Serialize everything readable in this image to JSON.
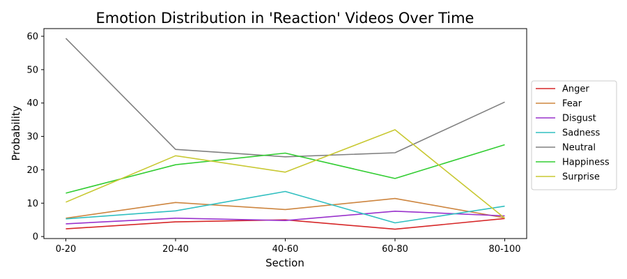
{
  "chart_data": {
    "type": "line",
    "title": "Emotion Distribution in 'Reaction' Videos Over Time",
    "xlabel": "Section",
    "ylabel": "Probability",
    "categories": [
      "0-20",
      "20-40",
      "40-60",
      "60-80",
      "80-100"
    ],
    "ylim": [
      -0.6,
      62.3
    ],
    "yticks": [
      0,
      10,
      20,
      30,
      40,
      50,
      60
    ],
    "grid": false,
    "legend_position": "right",
    "series": [
      {
        "name": "Anger",
        "color": "#d62728",
        "values": [
          2.3,
          4.4,
          5.0,
          2.2,
          5.4
        ]
      },
      {
        "name": "Fear",
        "color": "#cd853f",
        "values": [
          5.5,
          10.2,
          8.1,
          11.4,
          5.6
        ]
      },
      {
        "name": "Disgust",
        "color": "#9932cc",
        "values": [
          3.8,
          5.5,
          4.8,
          7.6,
          6.2
        ]
      },
      {
        "name": "Sadness",
        "color": "#30bfc0",
        "values": [
          5.3,
          7.7,
          13.5,
          4.1,
          9.1
        ]
      },
      {
        "name": "Neutral",
        "color": "#808080",
        "values": [
          59.4,
          26.1,
          23.9,
          25.1,
          40.3
        ]
      },
      {
        "name": "Happiness",
        "color": "#32cd32",
        "values": [
          13.0,
          21.5,
          25.0,
          17.4,
          27.5
        ]
      },
      {
        "name": "Surprise",
        "color": "#c8c832",
        "values": [
          10.3,
          24.2,
          19.3,
          32.0,
          5.5
        ]
      }
    ]
  }
}
